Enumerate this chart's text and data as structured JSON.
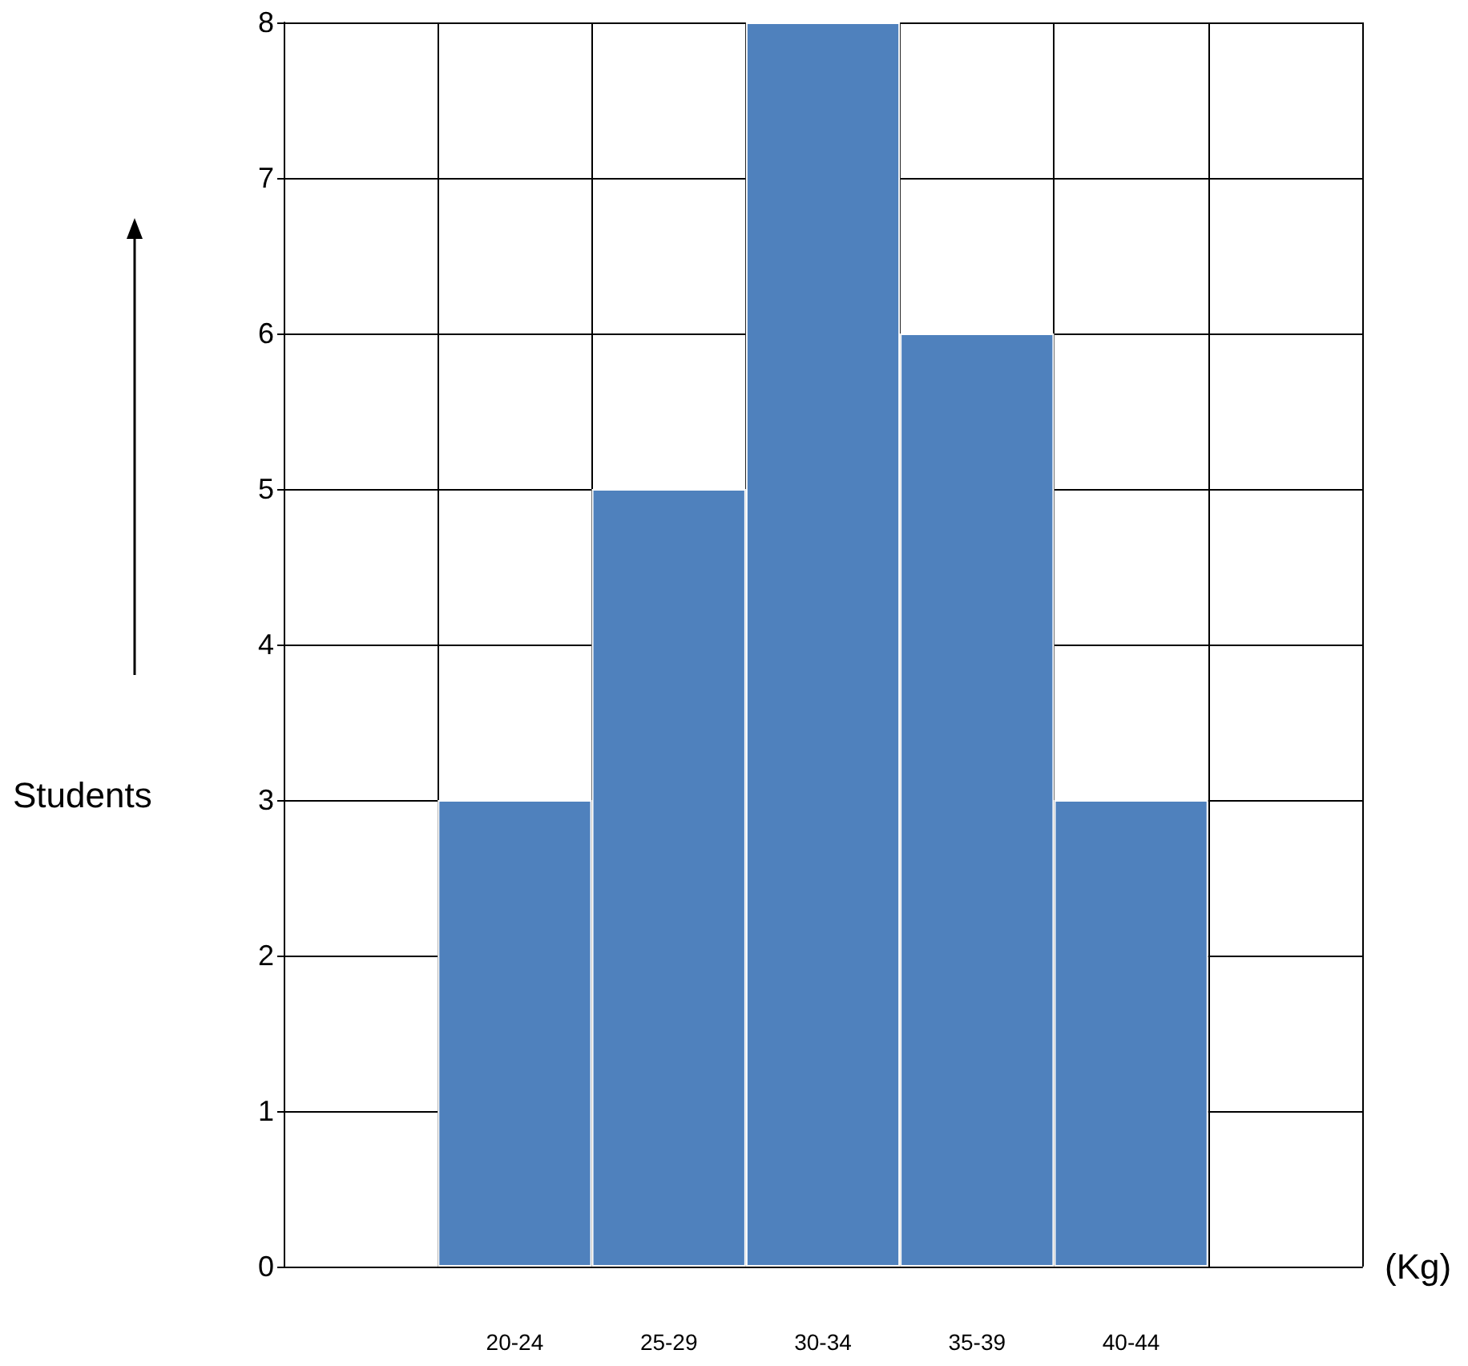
{
  "chart_data": {
    "type": "bar",
    "categories": [
      null,
      "20-24",
      "25-29",
      "30-34",
      "35-39",
      "40-44",
      null
    ],
    "values": [
      null,
      3,
      5,
      8,
      6,
      3,
      null
    ],
    "color": "#4f81bd",
    "xlabel": "(Kg)",
    "ylabel": "Students",
    "ylim": [
      0,
      8
    ],
    "yticks": [
      0,
      1,
      2,
      3,
      4,
      5,
      6,
      7,
      8
    ],
    "grid": true
  }
}
